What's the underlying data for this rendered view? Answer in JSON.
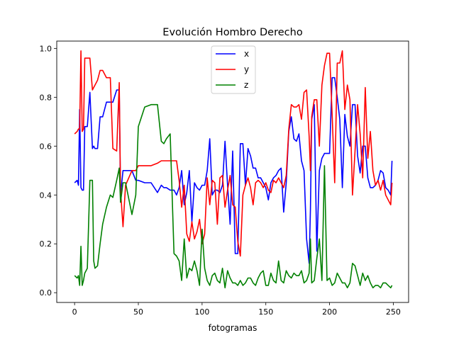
{
  "chart_data": {
    "type": "line",
    "title": "Evolución Hombro Derecho",
    "xlabel": "fotogramas",
    "ylabel": "",
    "xlim": [
      -14,
      262
    ],
    "ylim": [
      -0.04,
      1.03
    ],
    "xticks": [
      0,
      50,
      100,
      150,
      200,
      250
    ],
    "yticks": [
      0.0,
      0.2,
      0.4,
      0.6,
      0.8,
      1.0
    ],
    "xtick_labels": [
      "0",
      "50",
      "100",
      "150",
      "200",
      "250"
    ],
    "ytick_labels": [
      "0.0",
      "0.2",
      "0.4",
      "0.6",
      "0.8",
      "1.0"
    ],
    "legend_position": "upper-center",
    "series": [
      {
        "name": "x",
        "color": "#0000ff",
        "x": [
          0,
          2,
          3,
          4,
          5,
          6,
          7,
          8,
          9,
          10,
          12,
          14,
          15,
          16,
          18,
          20,
          22,
          25,
          28,
          30,
          33,
          35,
          36,
          38,
          40,
          45,
          48,
          50,
          55,
          60,
          65,
          68,
          70,
          72,
          75,
          78,
          80,
          82,
          84,
          86,
          88,
          90,
          92,
          94,
          96,
          98,
          100,
          102,
          104,
          106,
          108,
          110,
          112,
          114,
          116,
          118,
          120,
          122,
          124,
          126,
          128,
          130,
          132,
          134,
          136,
          138,
          140,
          142,
          144,
          146,
          148,
          150,
          152,
          154,
          156,
          158,
          160,
          162,
          164,
          166,
          168,
          170,
          172,
          174,
          176,
          178,
          180,
          182,
          184,
          185,
          186,
          188,
          190,
          192,
          194,
          196,
          198,
          200,
          202,
          204,
          206,
          208,
          210,
          212,
          214,
          216,
          218,
          220,
          222,
          224,
          226,
          228,
          230,
          232,
          234,
          236,
          238,
          240,
          242,
          244,
          246,
          248,
          249
        ],
        "y": [
          0.45,
          0.46,
          0.44,
          0.75,
          0.43,
          0.42,
          0.42,
          0.68,
          0.68,
          0.68,
          0.82,
          0.59,
          0.6,
          0.59,
          0.59,
          0.72,
          0.72,
          0.78,
          0.78,
          0.78,
          0.83,
          0.83,
          0.4,
          0.5,
          0.5,
          0.5,
          0.46,
          0.46,
          0.45,
          0.45,
          0.41,
          0.44,
          0.43,
          0.43,
          0.42,
          0.42,
          0.4,
          0.43,
          0.5,
          0.36,
          0.41,
          0.5,
          0.29,
          0.45,
          0.43,
          0.42,
          0.44,
          0.44,
          0.5,
          0.63,
          0.4,
          0.42,
          0.42,
          0.41,
          0.44,
          0.62,
          0.44,
          0.28,
          0.58,
          0.16,
          0.16,
          0.61,
          0.61,
          0.44,
          0.59,
          0.56,
          0.51,
          0.51,
          0.47,
          0.47,
          0.45,
          0.43,
          0.38,
          0.45,
          0.47,
          0.48,
          0.5,
          0.51,
          0.33,
          0.45,
          0.66,
          0.72,
          0.63,
          0.62,
          0.65,
          0.54,
          0.5,
          0.22,
          0.12,
          0.34,
          0.71,
          0.77,
          0.17,
          0.5,
          0.55,
          0.57,
          0.57,
          0.57,
          0.88,
          0.88,
          0.8,
          0.71,
          0.43,
          0.73,
          0.64,
          0.6,
          0.77,
          0.77,
          0.56,
          0.49,
          0.6,
          0.6,
          0.47,
          0.43,
          0.43,
          0.44,
          0.46,
          0.5,
          0.49,
          0.43,
          0.42,
          0.4,
          0.54
        ]
      },
      {
        "name": "y",
        "color": "#ff0000",
        "x": [
          0,
          2,
          3,
          4,
          5,
          6,
          7,
          8,
          9,
          10,
          12,
          14,
          15,
          16,
          18,
          20,
          22,
          25,
          28,
          30,
          33,
          35,
          36,
          38,
          40,
          45,
          48,
          50,
          55,
          60,
          65,
          68,
          70,
          72,
          75,
          78,
          80,
          82,
          84,
          86,
          88,
          90,
          92,
          94,
          96,
          98,
          100,
          102,
          104,
          106,
          108,
          110,
          112,
          114,
          116,
          118,
          120,
          122,
          124,
          126,
          128,
          130,
          132,
          134,
          136,
          138,
          140,
          142,
          144,
          146,
          148,
          150,
          152,
          154,
          156,
          158,
          160,
          162,
          164,
          166,
          168,
          170,
          172,
          174,
          176,
          178,
          180,
          182,
          184,
          185,
          186,
          188,
          190,
          192,
          194,
          196,
          198,
          200,
          202,
          204,
          206,
          208,
          210,
          212,
          214,
          216,
          218,
          220,
          222,
          224,
          226,
          228,
          230,
          232,
          234,
          236,
          238,
          240,
          242,
          244,
          246,
          248,
          249
        ],
        "y": [
          0.65,
          0.66,
          0.67,
          0.67,
          0.99,
          0.66,
          0.67,
          0.96,
          0.96,
          0.96,
          0.96,
          0.83,
          0.84,
          0.85,
          0.87,
          0.91,
          0.91,
          0.88,
          0.88,
          0.59,
          0.58,
          0.86,
          0.42,
          0.27,
          0.44,
          0.5,
          0.5,
          0.52,
          0.52,
          0.52,
          0.53,
          0.54,
          0.54,
          0.54,
          0.54,
          0.54,
          0.54,
          0.46,
          0.35,
          0.44,
          0.24,
          0.21,
          0.29,
          0.22,
          0.25,
          0.3,
          0.2,
          0.24,
          0.47,
          0.36,
          0.46,
          0.45,
          0.28,
          0.47,
          0.48,
          0.35,
          0.42,
          0.48,
          0.36,
          0.35,
          0.21,
          0.15,
          0.4,
          0.44,
          0.47,
          0.43,
          0.36,
          0.45,
          0.46,
          0.45,
          0.43,
          0.45,
          0.42,
          0.41,
          0.46,
          0.45,
          0.47,
          0.45,
          0.43,
          0.48,
          0.67,
          0.77,
          0.76,
          0.76,
          0.77,
          0.71,
          0.82,
          0.83,
          0.64,
          0.5,
          0.72,
          0.79,
          0.79,
          0.6,
          0.85,
          0.93,
          0.98,
          0.98,
          0.73,
          0.45,
          0.94,
          0.94,
          0.99,
          0.75,
          0.85,
          0.79,
          0.4,
          0.58,
          0.77,
          0.65,
          0.47,
          0.84,
          0.55,
          0.66,
          0.5,
          0.44,
          0.46,
          0.42,
          0.46,
          0.4,
          0.38,
          0.36,
          0.45
        ]
      },
      {
        "name": "z",
        "color": "#008000",
        "x": [
          0,
          2,
          3,
          4,
          5,
          6,
          7,
          8,
          9,
          10,
          12,
          14,
          15,
          16,
          18,
          20,
          22,
          25,
          28,
          30,
          33,
          35,
          36,
          38,
          40,
          45,
          48,
          50,
          55,
          60,
          65,
          68,
          70,
          72,
          75,
          78,
          80,
          82,
          84,
          86,
          88,
          90,
          92,
          94,
          96,
          98,
          100,
          102,
          104,
          106,
          108,
          110,
          112,
          114,
          116,
          118,
          120,
          122,
          124,
          126,
          128,
          130,
          132,
          134,
          136,
          138,
          140,
          142,
          144,
          146,
          148,
          150,
          152,
          154,
          156,
          158,
          160,
          162,
          164,
          166,
          168,
          170,
          172,
          174,
          176,
          178,
          180,
          182,
          184,
          185,
          186,
          188,
          190,
          192,
          194,
          196,
          198,
          200,
          202,
          204,
          206,
          208,
          210,
          212,
          214,
          216,
          218,
          220,
          222,
          224,
          226,
          228,
          230,
          232,
          234,
          236,
          238,
          240,
          242,
          244,
          246,
          248,
          249
        ],
        "y": [
          0.07,
          0.06,
          0.07,
          0.03,
          0.19,
          0.03,
          0.05,
          0.08,
          0.09,
          0.1,
          0.46,
          0.46,
          0.13,
          0.1,
          0.11,
          0.2,
          0.28,
          0.35,
          0.4,
          0.39,
          0.46,
          0.51,
          0.37,
          0.45,
          0.45,
          0.32,
          0.4,
          0.68,
          0.76,
          0.77,
          0.77,
          0.62,
          0.61,
          0.63,
          0.65,
          0.16,
          0.15,
          0.13,
          0.05,
          0.22,
          0.06,
          0.1,
          0.09,
          0.13,
          0.09,
          0.03,
          0.26,
          0.1,
          0.05,
          0.03,
          0.07,
          0.08,
          0.05,
          0.04,
          0.1,
          0.02,
          0.09,
          0.06,
          0.04,
          0.04,
          0.03,
          0.05,
          0.03,
          0.04,
          0.06,
          0.06,
          0.04,
          0.03,
          0.06,
          0.08,
          0.09,
          0.03,
          0.03,
          0.08,
          0.05,
          0.04,
          0.13,
          0.05,
          0.04,
          0.09,
          0.07,
          0.06,
          0.08,
          0.07,
          0.07,
          0.09,
          0.04,
          0.05,
          0.08,
          0.22,
          0.04,
          0.05,
          0.14,
          0.22,
          0.05,
          0.52,
          0.05,
          0.06,
          0.03,
          0.04,
          0.08,
          0.06,
          0.04,
          0.04,
          0.02,
          0.04,
          0.12,
          0.11,
          0.07,
          0.03,
          0.08,
          0.05,
          0.07,
          0.04,
          0.02,
          0.03,
          0.03,
          0.02,
          0.04,
          0.04,
          0.03,
          0.02,
          0.03
        ]
      }
    ]
  }
}
